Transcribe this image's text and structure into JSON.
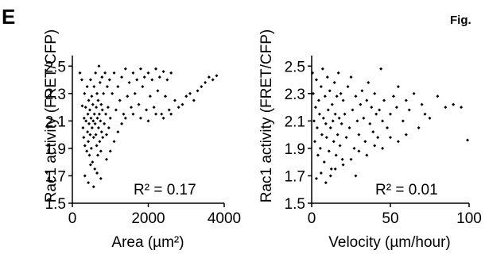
{
  "header": {
    "panel_letter": "E",
    "figure_tag": "Fig."
  },
  "chart_data": [
    {
      "type": "scatter",
      "title": "",
      "xlabel": "Area (µm²)",
      "ylabel": "Rac1 activity (FRET/CFP)",
      "xlim": [
        0,
        4000
      ],
      "ylim": [
        1.5,
        2.6
      ],
      "xticks": [
        0,
        2000,
        4000
      ],
      "xtick_labels": [
        "0",
        "2000",
        "4000"
      ],
      "yticks": [
        1.5,
        1.7,
        1.9,
        2.1,
        2.3,
        2.5
      ],
      "ytick_labels": [
        "1.5",
        "1.7",
        "1.9",
        "2.1",
        "2.3",
        "2.5"
      ],
      "annotation": "R² = 0.17",
      "grid": false,
      "marker_color": "#000000",
      "points": [
        [
          200,
          2.45
        ],
        [
          250,
          2.4
        ],
        [
          260,
          2.21
        ],
        [
          280,
          2.05
        ],
        [
          300,
          1.98
        ],
        [
          310,
          2.12
        ],
        [
          320,
          2.3
        ],
        [
          330,
          1.92
        ],
        [
          350,
          2.2
        ],
        [
          360,
          2.1
        ],
        [
          380,
          1.88
        ],
        [
          390,
          2.35
        ],
        [
          400,
          2.02
        ],
        [
          410,
          2.15
        ],
        [
          420,
          1.95
        ],
        [
          430,
          2.25
        ],
        [
          440,
          2.08
        ],
        [
          450,
          1.85
        ],
        [
          460,
          2.18
        ],
        [
          470,
          2.0
        ],
        [
          480,
          2.4
        ],
        [
          490,
          2.12
        ],
        [
          500,
          1.9
        ],
        [
          510,
          2.28
        ],
        [
          520,
          2.05
        ],
        [
          530,
          1.8
        ],
        [
          540,
          2.22
        ],
        [
          550,
          2.1
        ],
        [
          560,
          1.98
        ],
        [
          570,
          2.35
        ],
        [
          580,
          2.15
        ],
        [
          590,
          1.75
        ],
        [
          600,
          2.08
        ],
        [
          610,
          2.45
        ],
        [
          620,
          2.0
        ],
        [
          630,
          2.2
        ],
        [
          640,
          1.92
        ],
        [
          650,
          2.3
        ],
        [
          660,
          2.12
        ],
        [
          670,
          1.85
        ],
        [
          680,
          2.25
        ],
        [
          690,
          2.05
        ],
        [
          700,
          2.5
        ],
        [
          710,
          2.15
        ],
        [
          720,
          1.95
        ],
        [
          730,
          2.38
        ],
        [
          740,
          2.1
        ],
        [
          750,
          1.88
        ],
        [
          760,
          2.22
        ],
        [
          770,
          2.02
        ],
        [
          780,
          2.42
        ],
        [
          790,
          2.18
        ],
        [
          800,
          1.98
        ],
        [
          820,
          2.3
        ],
        [
          840,
          2.08
        ],
        [
          860,
          2.45
        ],
        [
          880,
          2.15
        ],
        [
          900,
          2.0
        ],
        [
          920,
          2.35
        ],
        [
          940,
          2.2
        ],
        [
          960,
          2.05
        ],
        [
          980,
          2.4
        ],
        [
          1000,
          2.12
        ],
        [
          1050,
          2.3
        ],
        [
          1100,
          2.45
        ],
        [
          1150,
          2.18
        ],
        [
          1200,
          2.35
        ],
        [
          1250,
          2.25
        ],
        [
          1300,
          2.42
        ],
        [
          1350,
          2.15
        ],
        [
          1400,
          2.48
        ],
        [
          1450,
          2.28
        ],
        [
          1500,
          2.38
        ],
        [
          1550,
          2.2
        ],
        [
          1600,
          2.45
        ],
        [
          1650,
          2.3
        ],
        [
          1700,
          2.4
        ],
        [
          1750,
          2.22
        ],
        [
          1800,
          2.48
        ],
        [
          1850,
          2.35
        ],
        [
          1900,
          2.42
        ],
        [
          1950,
          2.18
        ],
        [
          2000,
          2.45
        ],
        [
          2050,
          2.28
        ],
        [
          2100,
          2.4
        ],
        [
          2150,
          2.2
        ],
        [
          2200,
          2.48
        ],
        [
          2250,
          2.32
        ],
        [
          2300,
          2.42
        ],
        [
          2350,
          2.15
        ],
        [
          2400,
          2.46
        ],
        [
          2450,
          2.28
        ],
        [
          2500,
          2.4
        ],
        [
          2550,
          2.18
        ],
        [
          2600,
          2.45
        ],
        [
          2700,
          2.25
        ],
        [
          2800,
          2.2
        ],
        [
          2900,
          2.22
        ],
        [
          3000,
          2.28
        ],
        [
          3100,
          2.3
        ],
        [
          3200,
          2.25
        ],
        [
          3300,
          2.32
        ],
        [
          3400,
          2.35
        ],
        [
          3500,
          2.38
        ],
        [
          3600,
          2.42
        ],
        [
          3700,
          2.4
        ],
        [
          3800,
          2.43
        ],
        [
          330,
          1.7
        ],
        [
          420,
          1.65
        ],
        [
          560,
          1.62
        ],
        [
          650,
          1.72
        ],
        [
          750,
          1.68
        ],
        [
          480,
          1.78
        ],
        [
          900,
          1.82
        ],
        [
          1000,
          1.88
        ],
        [
          1100,
          1.95
        ],
        [
          1200,
          2.02
        ],
        [
          1300,
          2.08
        ],
        [
          1400,
          2.12
        ],
        [
          1600,
          2.15
        ],
        [
          1800,
          2.12
        ],
        [
          2000,
          2.1
        ],
        [
          2200,
          2.15
        ],
        [
          2400,
          2.12
        ],
        [
          2600,
          2.15
        ]
      ]
    },
    {
      "type": "scatter",
      "title": "",
      "xlabel": "Velocity (µm/hour)",
      "ylabel": "Rac1 activity (FRET/CFP)",
      "xlim": [
        0,
        100
      ],
      "ylim": [
        1.5,
        2.6
      ],
      "xticks": [
        0,
        50,
        100
      ],
      "xtick_labels": [
        "0",
        "50",
        "100"
      ],
      "yticks": [
        1.5,
        1.7,
        1.9,
        2.1,
        2.3,
        2.5
      ],
      "ytick_labels": [
        "1.5",
        "1.7",
        "1.9",
        "2.1",
        "2.3",
        "2.5"
      ],
      "annotation": "R² = 0.01",
      "grid": false,
      "marker_color": "#000000",
      "points": [
        [
          0.5,
          2.45
        ],
        [
          1,
          2.3
        ],
        [
          1.5,
          2.1
        ],
        [
          2,
          1.95
        ],
        [
          2.5,
          2.2
        ],
        [
          3,
          2.4
        ],
        [
          3.5,
          2.05
        ],
        [
          4,
          1.85
        ],
        [
          4.5,
          2.25
        ],
        [
          5,
          2.15
        ],
        [
          5.5,
          1.9
        ],
        [
          6,
          2.35
        ],
        [
          6.5,
          2.0
        ],
        [
          7,
          2.48
        ],
        [
          7.5,
          2.12
        ],
        [
          8,
          1.8
        ],
        [
          8.5,
          2.28
        ],
        [
          9,
          2.08
        ],
        [
          9.5,
          1.98
        ],
        [
          10,
          2.42
        ],
        [
          10.5,
          2.18
        ],
        [
          11,
          1.88
        ],
        [
          11.5,
          2.32
        ],
        [
          12,
          2.05
        ],
        [
          12.5,
          1.75
        ],
        [
          13,
          2.22
        ],
        [
          13.5,
          2.1
        ],
        [
          14,
          1.95
        ],
        [
          14.5,
          2.38
        ],
        [
          15,
          2.15
        ],
        [
          15.5,
          1.85
        ],
        [
          16,
          2.28
        ],
        [
          16.5,
          2.0
        ],
        [
          17,
          2.45
        ],
        [
          17.5,
          2.12
        ],
        [
          18,
          1.92
        ],
        [
          18.5,
          2.3
        ],
        [
          19,
          2.08
        ],
        [
          19.5,
          1.82
        ],
        [
          20,
          2.25
        ],
        [
          21,
          2.15
        ],
        [
          22,
          1.98
        ],
        [
          23,
          2.35
        ],
        [
          24,
          2.05
        ],
        [
          25,
          2.42
        ],
        [
          26,
          2.18
        ],
        [
          27,
          1.9
        ],
        [
          28,
          2.28
        ],
        [
          29,
          2.1
        ],
        [
          30,
          2.0
        ],
        [
          31,
          2.22
        ],
        [
          32,
          2.32
        ],
        [
          33,
          2.12
        ],
        [
          34,
          1.95
        ],
        [
          35,
          2.25
        ],
        [
          36,
          2.38
        ],
        [
          37,
          2.08
        ],
        [
          38,
          2.2
        ],
        [
          39,
          2.02
        ],
        [
          40,
          2.3
        ],
        [
          41,
          2.15
        ],
        [
          42,
          1.98
        ],
        [
          43,
          2.18
        ],
        [
          44,
          2.48
        ],
        [
          45,
          2.1
        ],
        [
          46,
          2.25
        ],
        [
          48,
          2.05
        ],
        [
          50,
          2.15
        ],
        [
          52,
          2.28
        ],
        [
          54,
          2.2
        ],
        [
          55,
          2.35
        ],
        [
          58,
          2.1
        ],
        [
          60,
          2.25
        ],
        [
          62,
          2.18
        ],
        [
          65,
          2.3
        ],
        [
          68,
          2.05
        ],
        [
          70,
          2.22
        ],
        [
          72,
          2.15
        ],
        [
          75,
          2.12
        ],
        [
          80,
          2.28
        ],
        [
          85,
          2.2
        ],
        [
          90,
          2.22
        ],
        [
          95,
          2.2
        ],
        [
          99,
          1.96
        ],
        [
          3,
          1.68
        ],
        [
          6,
          1.72
        ],
        [
          9,
          1.65
        ],
        [
          12,
          1.7
        ],
        [
          15,
          1.75
        ],
        [
          20,
          1.78
        ],
        [
          25,
          1.82
        ],
        [
          28,
          1.7
        ],
        [
          30,
          1.88
        ],
        [
          35,
          1.85
        ],
        [
          40,
          1.92
        ],
        [
          45,
          1.9
        ],
        [
          50,
          1.98
        ],
        [
          55,
          1.95
        ],
        [
          60,
          2.0
        ]
      ]
    }
  ]
}
